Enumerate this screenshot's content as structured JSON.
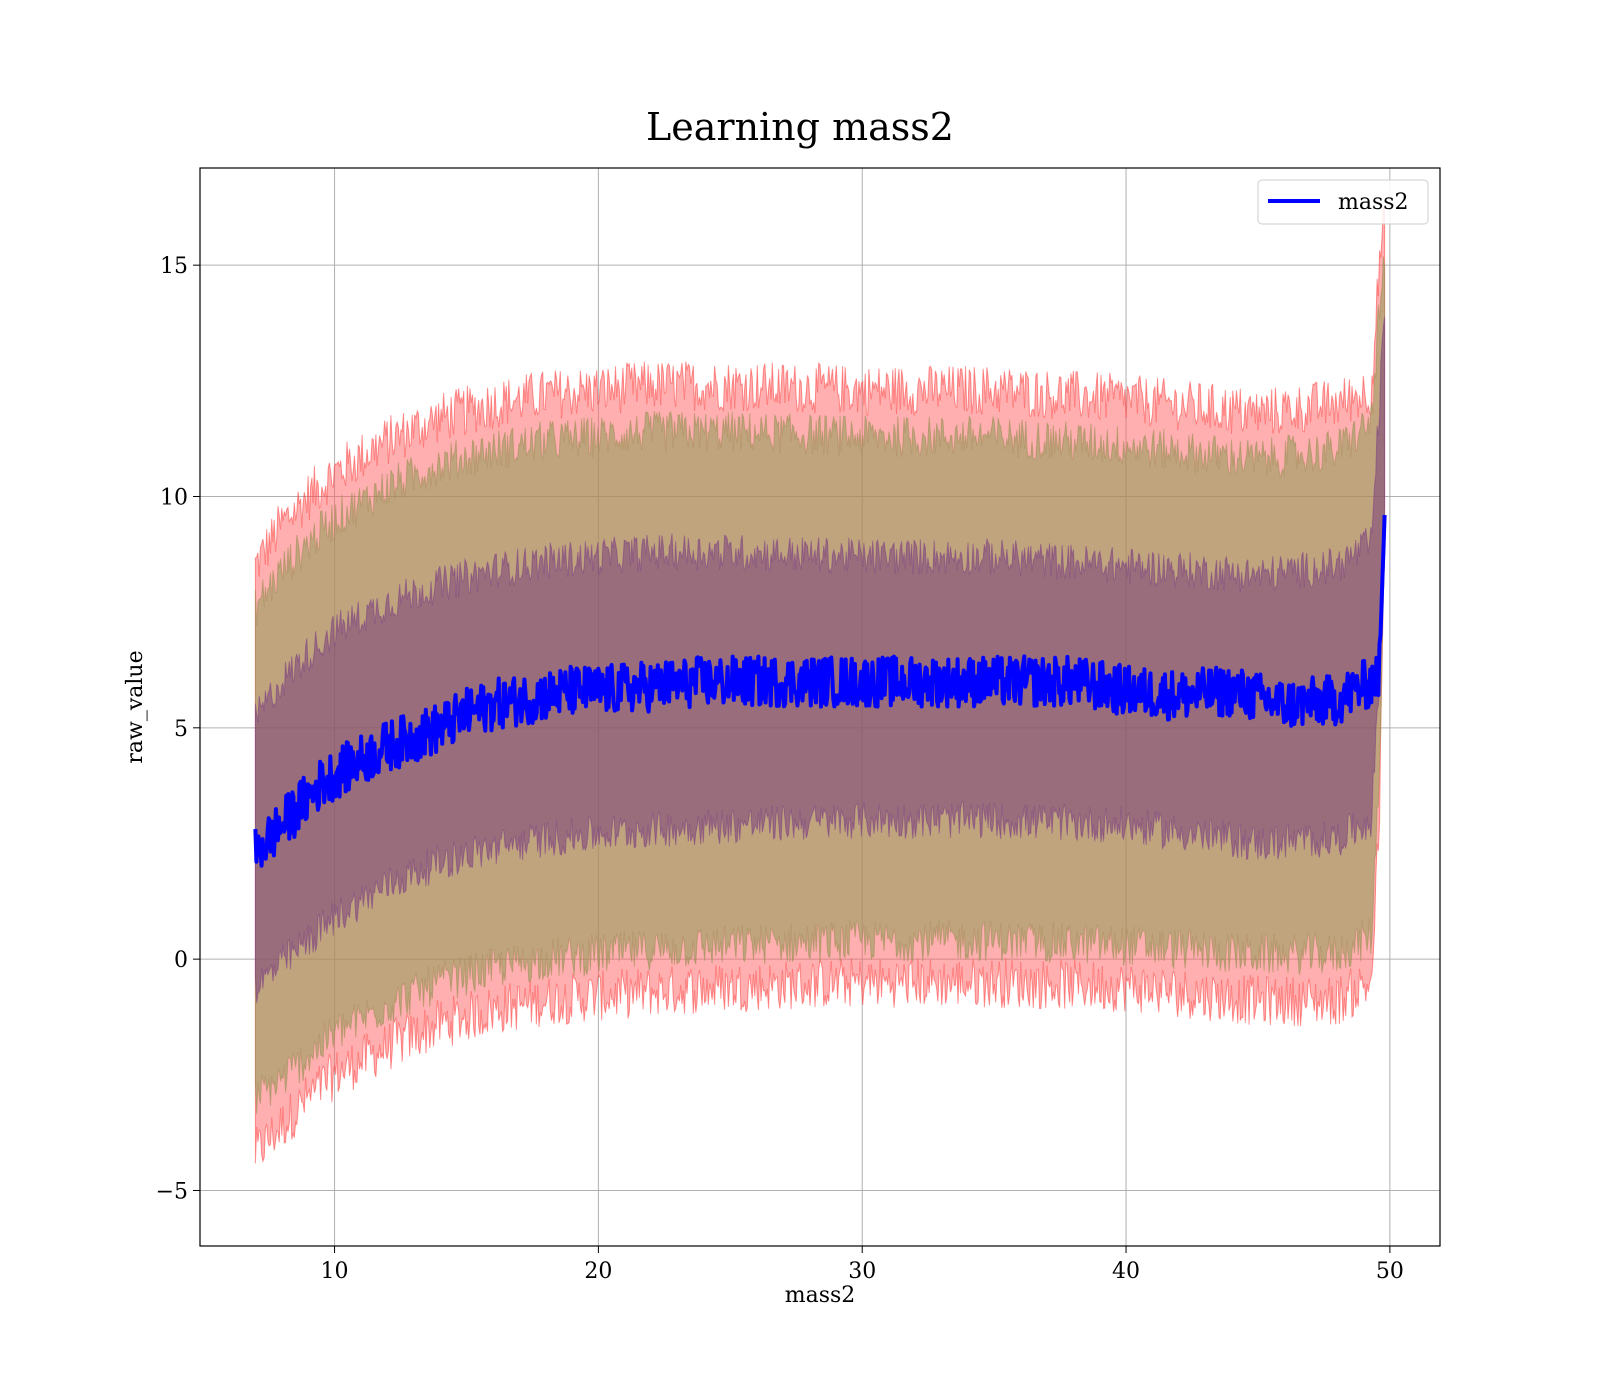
{
  "chart_data": {
    "type": "line",
    "title": "Learning mass2",
    "xlabel": "mass2",
    "ylabel": "raw_value",
    "xlim": [
      4.9,
      51.9
    ],
    "ylim": [
      -6.2,
      17.1
    ],
    "x_ticks": [
      10,
      20,
      30,
      40,
      50
    ],
    "y_ticks": [
      -5,
      0,
      5,
      10,
      15
    ],
    "x_tick_labels": [
      "10",
      "20",
      "30",
      "40",
      "50"
    ],
    "y_tick_labels": [
      "−5",
      "0",
      "5",
      "10",
      "15"
    ],
    "grid": true,
    "legend": {
      "position": "top-right",
      "entries": [
        "mass2"
      ]
    },
    "colors": {
      "line": "#0000ff",
      "band_outer": "#ff0000",
      "band_middle": "#80a040",
      "band_inner": "#603080"
    },
    "series": [
      {
        "name": "mass2",
        "kind": "mean",
        "x": [
          7.0,
          7.5,
          8.0,
          8.5,
          9.0,
          9.5,
          10.0,
          11.0,
          12.0,
          13.0,
          14.0,
          15.0,
          16.0,
          17.0,
          18.0,
          19.0,
          20.0,
          22.0,
          24.0,
          26.0,
          28.0,
          30.0,
          32.0,
          34.0,
          36.0,
          38.0,
          40.0,
          42.0,
          44.0,
          46.0,
          48.0,
          49.3,
          49.6,
          49.8
        ],
        "y": [
          2.3,
          2.6,
          2.9,
          3.2,
          3.5,
          3.8,
          4.0,
          4.3,
          4.6,
          4.8,
          5.0,
          5.3,
          5.5,
          5.6,
          5.7,
          5.8,
          5.8,
          5.9,
          6.0,
          6.0,
          6.0,
          6.0,
          6.0,
          6.0,
          6.0,
          6.0,
          5.8,
          5.7,
          5.8,
          5.5,
          5.6,
          6.0,
          6.2,
          9.6
        ]
      }
    ],
    "bands": [
      {
        "kind": "outer",
        "x": [
          7.0,
          8.0,
          9.0,
          10.0,
          12.0,
          14.0,
          16.0,
          18.0,
          20.0,
          22.0,
          25.0,
          30.0,
          35.0,
          40.0,
          45.0,
          48.0,
          49.3,
          49.6,
          49.8
        ],
        "upper": [
          8.5,
          9.4,
          10.0,
          10.5,
          11.2,
          11.7,
          12.0,
          12.2,
          12.3,
          12.4,
          12.4,
          12.3,
          12.3,
          12.1,
          11.8,
          12.0,
          12.3,
          15.0,
          16.0
        ],
        "lower": [
          -4.2,
          -3.6,
          -3.0,
          -2.5,
          -1.9,
          -1.4,
          -1.1,
          -0.9,
          -0.8,
          -0.7,
          -0.6,
          -0.5,
          -0.5,
          -0.6,
          -0.9,
          -0.9,
          -0.5,
          3.0,
          9.0
        ]
      },
      {
        "kind": "middle",
        "x": [
          7.0,
          8.0,
          9.0,
          10.0,
          12.0,
          14.0,
          16.0,
          18.0,
          20.0,
          22.0,
          25.0,
          30.0,
          35.0,
          40.0,
          45.0,
          48.0,
          49.3,
          49.6,
          49.8
        ],
        "upper": [
          7.6,
          8.4,
          9.0,
          9.5,
          10.2,
          10.7,
          11.0,
          11.2,
          11.3,
          11.4,
          11.4,
          11.3,
          11.3,
          11.1,
          10.8,
          11.0,
          11.6,
          14.0,
          15.0
        ],
        "lower": [
          -3.0,
          -2.6,
          -2.1,
          -1.6,
          -1.0,
          -0.5,
          -0.2,
          0.0,
          0.1,
          0.2,
          0.3,
          0.4,
          0.4,
          0.3,
          0.1,
          0.1,
          0.5,
          4.0,
          9.0
        ]
      },
      {
        "kind": "inner",
        "x": [
          7.0,
          8.0,
          9.0,
          10.0,
          12.0,
          14.0,
          16.0,
          18.0,
          20.0,
          22.0,
          25.0,
          30.0,
          35.0,
          40.0,
          45.0,
          48.0,
          49.3,
          49.6,
          49.8
        ],
        "upper": [
          5.2,
          6.0,
          6.6,
          7.1,
          7.7,
          8.1,
          8.4,
          8.6,
          8.7,
          8.8,
          8.8,
          8.7,
          8.7,
          8.5,
          8.3,
          8.5,
          9.0,
          12.0,
          14.0
        ],
        "lower": [
          -0.6,
          -0.1,
          0.4,
          0.9,
          1.6,
          2.1,
          2.4,
          2.6,
          2.7,
          2.8,
          2.9,
          3.0,
          3.0,
          2.9,
          2.5,
          2.6,
          3.0,
          6.0,
          9.6
        ]
      }
    ]
  }
}
